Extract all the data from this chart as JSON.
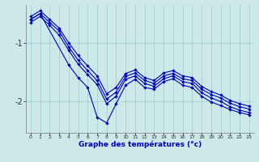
{
  "xlabel": "Graphe des températures (°c)",
  "bg_color": "#cce8e8",
  "line_color": "#0000bb",
  "grid_color": "#99cccc",
  "xlim": [
    -0.5,
    23.5
  ],
  "ylim": [
    -2.55,
    -0.35
  ],
  "yticks": [
    -2.0,
    -1.0
  ],
  "ytick_labels": [
    "-2",
    "-1"
  ],
  "xticks": [
    0,
    1,
    2,
    3,
    4,
    5,
    6,
    7,
    8,
    9,
    10,
    11,
    12,
    13,
    14,
    15,
    16,
    17,
    18,
    19,
    20,
    21,
    22,
    23
  ],
  "line1_x": [
    0,
    1,
    2,
    3,
    4,
    5,
    6,
    7,
    8,
    9,
    10,
    11,
    12,
    13,
    14,
    15,
    16,
    17,
    18,
    19,
    20,
    21,
    22,
    23
  ],
  "line1_y": [
    -0.55,
    -0.45,
    -0.6,
    -0.75,
    -1.0,
    -1.22,
    -1.4,
    -1.57,
    -1.88,
    -1.77,
    -1.53,
    -1.47,
    -1.6,
    -1.65,
    -1.52,
    -1.48,
    -1.57,
    -1.6,
    -1.75,
    -1.84,
    -1.9,
    -1.99,
    -2.05,
    -2.09
  ],
  "line2_x": [
    0,
    1,
    2,
    3,
    4,
    5,
    6,
    7,
    8,
    9,
    10,
    11,
    12,
    13,
    14,
    15,
    16,
    17,
    18,
    19,
    20,
    21,
    22,
    23
  ],
  "line2_y": [
    -0.6,
    -0.5,
    -0.65,
    -0.8,
    -1.07,
    -1.3,
    -1.48,
    -1.65,
    -1.97,
    -1.85,
    -1.58,
    -1.52,
    -1.65,
    -1.7,
    -1.57,
    -1.53,
    -1.62,
    -1.65,
    -1.8,
    -1.89,
    -1.95,
    -2.04,
    -2.1,
    -2.14
  ],
  "line3_x": [
    0,
    1,
    2,
    3,
    4,
    5,
    6,
    7,
    8,
    9,
    10,
    11,
    12,
    13,
    14,
    15,
    16,
    17,
    18,
    19,
    20,
    21,
    22,
    23
  ],
  "line3_y": [
    -0.65,
    -0.55,
    -0.7,
    -0.87,
    -1.13,
    -1.37,
    -1.55,
    -1.72,
    -2.05,
    -1.92,
    -1.63,
    -1.57,
    -1.7,
    -1.75,
    -1.62,
    -1.57,
    -1.67,
    -1.7,
    -1.86,
    -1.95,
    -2.01,
    -2.1,
    -2.16,
    -2.2
  ],
  "line4_x": [
    0,
    1,
    4,
    5,
    6,
    7,
    8,
    9,
    10,
    11,
    12,
    13,
    14,
    15,
    16,
    17,
    18,
    19,
    20,
    21,
    22,
    23
  ],
  "line4_y": [
    -0.6,
    -0.5,
    -1.38,
    -1.6,
    -1.77,
    -2.28,
    -2.38,
    -2.05,
    -1.73,
    -1.63,
    -1.77,
    -1.8,
    -1.67,
    -1.62,
    -1.73,
    -1.77,
    -1.92,
    -2.02,
    -2.08,
    -2.15,
    -2.2,
    -2.24
  ]
}
